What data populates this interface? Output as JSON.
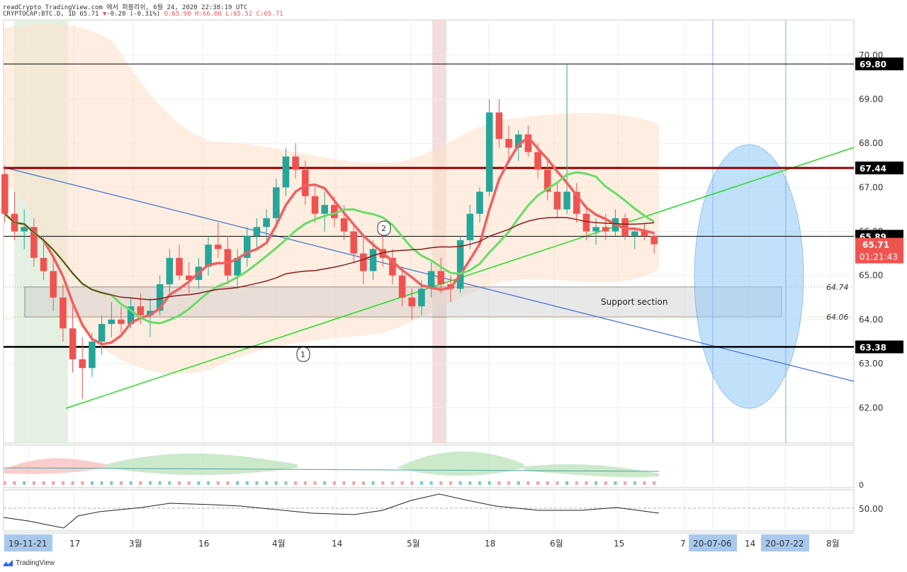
{
  "header": {
    "line1": "readCrypto TradingView.com 에서 퍼블리쉬, 6월 24, 2020 22:38:19 UTC",
    "symbol": "CRYPTOCAP:BTC.D, 1D 65.71",
    "change": "-0.20 (-0.31%)",
    "ohlc": "O:65.90 H:66.00 L:65.52 C:65.71"
  },
  "brand": "TradingView",
  "colors": {
    "up": "#26a69a",
    "down": "#ef5350",
    "support_box": "#c8c8c8",
    "ellipse": "#90caf9",
    "resistance": "#8b0000",
    "green_line": "#22dd22",
    "blue_line": "#3a6fd8"
  },
  "chart_data": {
    "type": "candlestick",
    "ylim": [
      61.2,
      70.8
    ],
    "y_ticks": [
      "70.00",
      "69.00",
      "68.00",
      "67.00",
      "66.00",
      "65.00",
      "64.00",
      "63.00",
      "62.00"
    ],
    "x_ticks": [
      "19-11-21",
      "17",
      "3월",
      "16",
      "4월",
      "14",
      "5월",
      "18",
      "6월",
      "15",
      "7",
      "20-07-06",
      "14",
      "20-07-22",
      "8월"
    ],
    "horizontal_levels": [
      {
        "value": 69.8,
        "label": "69.80"
      },
      {
        "value": 67.44,
        "label": "67.44"
      },
      {
        "value": 65.89,
        "label": "65.89"
      },
      {
        "value": 63.38,
        "label": "63.38"
      }
    ],
    "last_price": {
      "value": 65.71,
      "label": "65.71",
      "countdown": "01:21:43"
    },
    "support_section": {
      "label": "Support section",
      "top": 64.74,
      "bottom": 64.06,
      "top_label": "64.74",
      "bottom_label": "64.06"
    },
    "markers": [
      "1",
      "2"
    ],
    "candles": [
      [
        67.3,
        67.5,
        66.2,
        66.4
      ],
      [
        66.4,
        66.9,
        65.8,
        66.0
      ],
      [
        66.0,
        66.5,
        65.6,
        66.1
      ],
      [
        66.1,
        66.3,
        65.2,
        65.4
      ],
      [
        65.4,
        65.9,
        64.9,
        65.1
      ],
      [
        65.1,
        65.4,
        64.2,
        64.5
      ],
      [
        64.5,
        64.8,
        63.5,
        63.8
      ],
      [
        63.8,
        64.3,
        62.8,
        63.1
      ],
      [
        63.1,
        63.6,
        62.2,
        62.9
      ],
      [
        62.9,
        63.7,
        62.7,
        63.5
      ],
      [
        63.5,
        64.1,
        63.2,
        63.9
      ],
      [
        63.9,
        64.4,
        63.6,
        64.0
      ],
      [
        64.0,
        64.3,
        63.7,
        63.9
      ],
      [
        63.9,
        64.5,
        63.8,
        64.3
      ],
      [
        64.3,
        64.6,
        63.9,
        64.1
      ],
      [
        64.1,
        64.5,
        63.6,
        64.2
      ],
      [
        64.2,
        65.0,
        64.1,
        64.8
      ],
      [
        64.8,
        65.6,
        64.6,
        65.4
      ],
      [
        65.4,
        65.7,
        64.9,
        65.0
      ],
      [
        65.0,
        65.3,
        64.6,
        64.9
      ],
      [
        64.9,
        65.4,
        64.7,
        65.2
      ],
      [
        65.2,
        65.9,
        65.0,
        65.7
      ],
      [
        65.7,
        66.2,
        65.4,
        65.6
      ],
      [
        65.6,
        65.9,
        64.8,
        65.0
      ],
      [
        65.0,
        65.6,
        64.7,
        65.4
      ],
      [
        65.4,
        66.1,
        65.2,
        65.9
      ],
      [
        65.9,
        66.3,
        65.6,
        66.1
      ],
      [
        66.1,
        66.5,
        65.8,
        66.3
      ],
      [
        66.3,
        67.2,
        66.1,
        67.0
      ],
      [
        67.0,
        67.9,
        66.8,
        67.7
      ],
      [
        67.7,
        68.0,
        67.2,
        67.4
      ],
      [
        67.4,
        67.6,
        66.6,
        66.8
      ],
      [
        66.8,
        67.0,
        66.2,
        66.4
      ],
      [
        66.4,
        66.9,
        66.0,
        66.6
      ],
      [
        66.6,
        66.8,
        66.1,
        66.3
      ],
      [
        66.3,
        66.6,
        65.8,
        66.0
      ],
      [
        66.0,
        66.2,
        65.3,
        65.5
      ],
      [
        65.5,
        65.9,
        64.8,
        65.1
      ],
      [
        65.1,
        65.8,
        64.9,
        65.6
      ],
      [
        65.6,
        65.9,
        65.2,
        65.4
      ],
      [
        65.4,
        65.6,
        64.8,
        65.0
      ],
      [
        65.0,
        65.2,
        64.3,
        64.5
      ],
      [
        64.5,
        64.7,
        64.0,
        64.3
      ],
      [
        64.3,
        64.9,
        64.1,
        64.7
      ],
      [
        64.7,
        65.3,
        64.5,
        65.1
      ],
      [
        65.1,
        65.4,
        64.6,
        64.8
      ],
      [
        64.8,
        65.0,
        64.4,
        64.7
      ],
      [
        64.7,
        65.9,
        64.6,
        65.8
      ],
      [
        65.8,
        66.6,
        65.6,
        66.4
      ],
      [
        66.4,
        67.0,
        66.2,
        66.9
      ],
      [
        66.9,
        69.0,
        66.8,
        68.7
      ],
      [
        68.7,
        69.0,
        67.9,
        68.1
      ],
      [
        68.1,
        68.4,
        67.6,
        67.9
      ],
      [
        67.9,
        68.3,
        67.6,
        68.2
      ],
      [
        68.2,
        68.4,
        67.7,
        67.8
      ],
      [
        67.8,
        68.0,
        67.2,
        67.4
      ],
      [
        67.4,
        67.6,
        66.7,
        66.9
      ],
      [
        66.9,
        67.1,
        66.3,
        66.5
      ],
      [
        66.5,
        69.8,
        66.4,
        66.9
      ],
      [
        66.9,
        67.1,
        66.2,
        66.4
      ],
      [
        66.4,
        66.6,
        65.8,
        66.0
      ],
      [
        66.0,
        66.3,
        65.7,
        66.1
      ],
      [
        66.1,
        66.4,
        65.8,
        66.0
      ],
      [
        66.0,
        66.5,
        65.9,
        66.3
      ],
      [
        66.3,
        66.4,
        65.8,
        65.9
      ],
      [
        65.9,
        66.1,
        65.6,
        66.0
      ],
      [
        66.0,
        66.2,
        65.8,
        65.9
      ],
      [
        65.9,
        66.0,
        65.5,
        65.71
      ]
    ]
  }
}
